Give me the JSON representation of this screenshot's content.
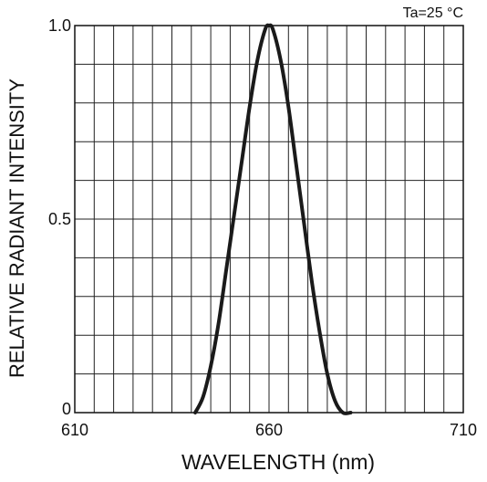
{
  "chart_data": {
    "type": "line",
    "title": "",
    "annotation": "Ta=25 °C",
    "xlabel": "WAVELENGTH (nm)",
    "ylabel": "RELATIVE RADIANT INTENSITY",
    "xlim": [
      610,
      710
    ],
    "ylim": [
      0,
      1.0
    ],
    "x_ticks": [
      {
        "value": 610,
        "label": "610"
      },
      {
        "value": 660,
        "label": "660"
      },
      {
        "value": 710,
        "label": "710"
      }
    ],
    "y_ticks": [
      {
        "value": 0,
        "label": "0"
      },
      {
        "value": 0.5,
        "label": "0.5"
      },
      {
        "value": 1.0,
        "label": "1.0"
      }
    ],
    "grid": true,
    "x_grid_step": 5,
    "y_grid_step": 0.1,
    "series": [
      {
        "color": "#1a1a1a",
        "x": [
          641,
          643,
          645,
          647,
          649,
          651,
          653,
          655,
          657,
          659,
          660,
          661,
          663,
          665,
          667,
          669,
          671,
          673,
          675,
          677,
          679,
          681
        ],
        "y": [
          0.0,
          0.04,
          0.12,
          0.23,
          0.37,
          0.51,
          0.65,
          0.79,
          0.91,
          0.99,
          1.0,
          0.99,
          0.91,
          0.79,
          0.64,
          0.49,
          0.34,
          0.21,
          0.1,
          0.03,
          0.0,
          0.0
        ]
      }
    ]
  }
}
